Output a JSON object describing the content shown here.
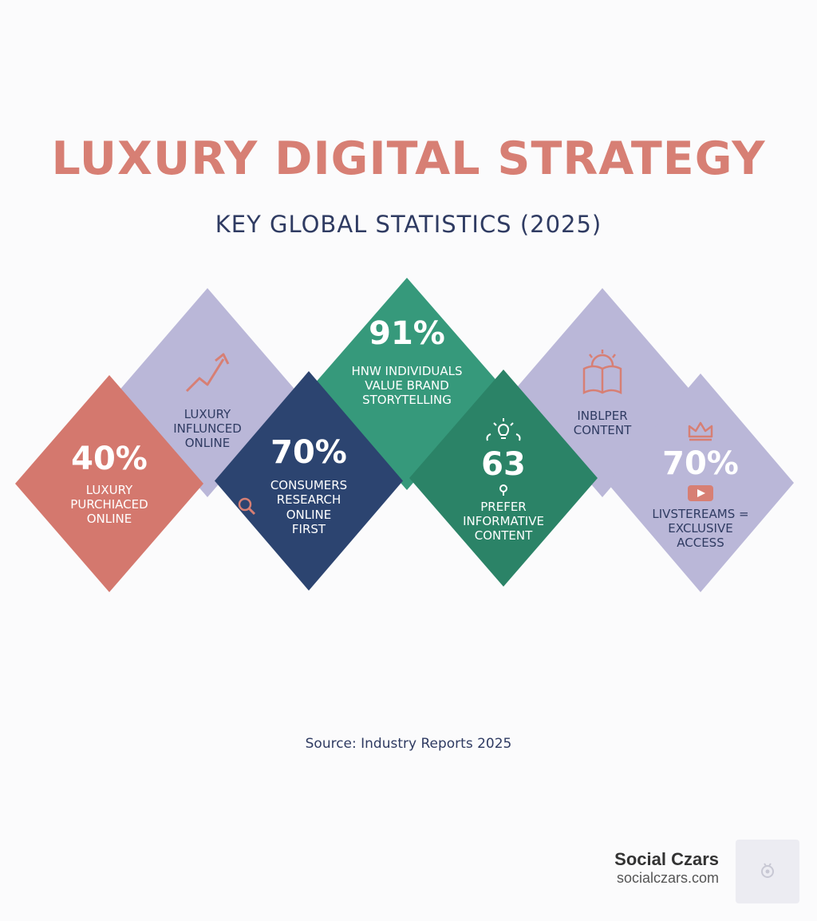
{
  "header": {
    "title": "LUXURY DIGITAL STRATEGY",
    "subtitle": "KEY GLOBAL STATISTICS (2025)"
  },
  "colors": {
    "title": "#d77f74",
    "subtitle": "#2f3b62",
    "coral": "#d4786e",
    "lavender": "#bab7d8",
    "navy": "#2c4470",
    "green_light": "#36997b",
    "green_dark": "#2b8367",
    "icon_accent": "#d77f74",
    "text_dark": "#2f3b62"
  },
  "stats": [
    {
      "value": "40%",
      "label": "LUXURY\nPURCHIACED\nONLINE",
      "icon": ""
    },
    {
      "value": "",
      "label": "LUXURY\nINFLUNCED\nONLINE",
      "icon": "trending-up-arrow-icon"
    },
    {
      "value": "70%",
      "label": "CONSUMERS\nRESEARCH\nONLINE\nFIRST",
      "icon": "search-icon"
    },
    {
      "value": "91%",
      "label": "HNW INDIVIDUALS\nVALUE BRAND\nSTORYTELLING",
      "icon": ""
    },
    {
      "value": "63",
      "label": "PREFER\nINFORMATIVE\nCONTENT",
      "icon": "lightbulb-icon"
    },
    {
      "value": "",
      "label": "INBLPER\nCONTENT",
      "icon": "open-book-sun-icon"
    },
    {
      "value": "70%",
      "label": "LIVSTEREAMS =\nEXCLUSIVE\nACCESS",
      "icon": "crown-icon"
    }
  ],
  "footer": {
    "source": "Source: Industry Reports 2025",
    "brand_name": "Social Czars",
    "brand_url": "socialczars.com"
  }
}
